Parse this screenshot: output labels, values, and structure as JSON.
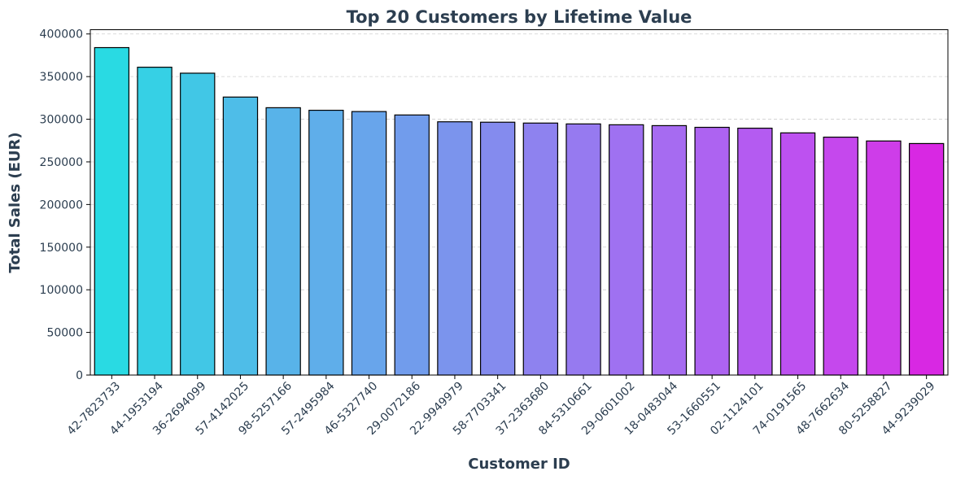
{
  "chart_data": {
    "type": "bar",
    "title": "Top 20 Customers by Lifetime Value",
    "xlabel": "Customer ID",
    "ylabel": "Total Sales (EUR)",
    "ylim": [
      0,
      405000
    ],
    "yticks": [
      0,
      50000,
      100000,
      150000,
      200000,
      250000,
      300000,
      350000,
      400000
    ],
    "grid": "y-dashed",
    "categories": [
      "42-7823733",
      "44-1953194",
      "36-2694099",
      "57-4142025",
      "98-5257166",
      "57-2495984",
      "46-5327740",
      "29-0072186",
      "22-9949979",
      "58-7703341",
      "37-2363680",
      "84-5310661",
      "29-0601002",
      "18-0483044",
      "53-1660551",
      "02-1124101",
      "74-0191565",
      "48-7662634",
      "80-5258827",
      "44-9239029"
    ],
    "values": [
      384000,
      361000,
      354000,
      326000,
      313500,
      310500,
      309000,
      305000,
      297000,
      296500,
      295500,
      294500,
      293500,
      292500,
      290500,
      289500,
      284000,
      279000,
      274500,
      271500
    ],
    "colors": [
      "#29dae3",
      "#36d0e5",
      "#41c7e6",
      "#4ebde8",
      "#58b3e9",
      "#5faeea",
      "#68a5eb",
      "#719cec",
      "#7b94ed",
      "#848bee",
      "#8e82ef",
      "#967af0",
      "#9f71f1",
      "#a66bf1",
      "#ad63f1",
      "#b45bf1",
      "#bd51f0",
      "#c548ed",
      "#ce3de9",
      "#d828e3"
    ]
  }
}
